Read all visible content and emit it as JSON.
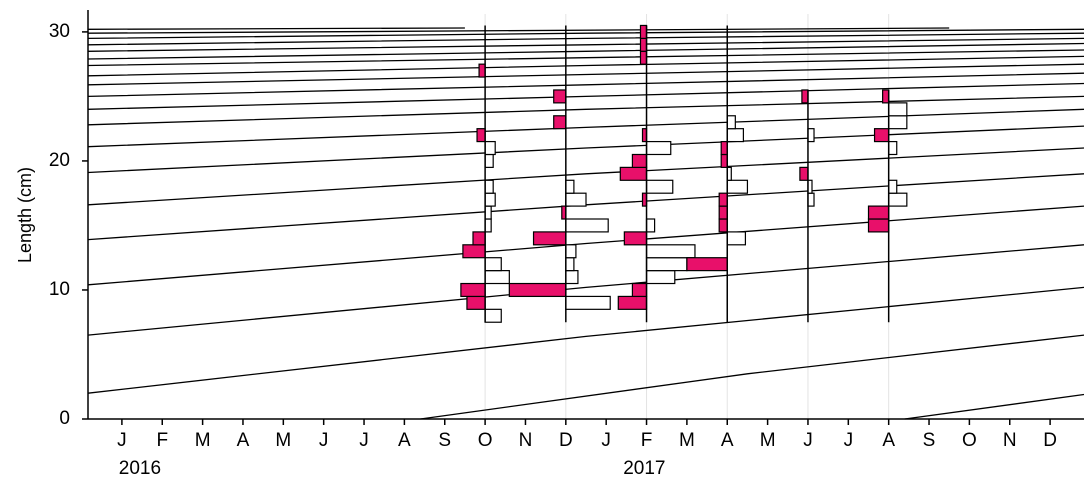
{
  "chart_data": {
    "type": "length-frequency",
    "y_label": "Length (cm)",
    "ylim": [
      0,
      31
    ],
    "yticks": [
      0,
      10,
      20,
      30
    ],
    "xlim": [
      -0.84,
      23.84
    ],
    "xticks": [
      {
        "value": 0,
        "label": "J"
      },
      {
        "value": 1,
        "label": "F"
      },
      {
        "value": 2,
        "label": "M"
      },
      {
        "value": 3,
        "label": "A"
      },
      {
        "value": 4,
        "label": "M"
      },
      {
        "value": 5,
        "label": "J"
      },
      {
        "value": 6,
        "label": "J"
      },
      {
        "value": 7,
        "label": "A"
      },
      {
        "value": 8,
        "label": "S"
      },
      {
        "value": 9,
        "label": "O"
      },
      {
        "value": 10,
        "label": "N"
      },
      {
        "value": 11,
        "label": "D"
      },
      {
        "value": 12,
        "label": "J"
      },
      {
        "value": 13,
        "label": "F"
      },
      {
        "value": 14,
        "label": "M"
      },
      {
        "value": 15,
        "label": "A"
      },
      {
        "value": 16,
        "label": "M"
      },
      {
        "value": 17,
        "label": "J"
      },
      {
        "value": 18,
        "label": "J"
      },
      {
        "value": 19,
        "label": "A"
      },
      {
        "value": 20,
        "label": "S"
      },
      {
        "value": 21,
        "label": "O"
      },
      {
        "value": 22,
        "label": "N"
      },
      {
        "value": 23,
        "label": "D"
      }
    ],
    "year_labels": [
      {
        "value": 0,
        "label": "2016"
      },
      {
        "value": 12.5,
        "label": "2017"
      }
    ],
    "negative_color": "#e8106a",
    "positive_color": "#ffffff",
    "curve_color": "#000000",
    "samples": [
      {
        "x": 9,
        "range": [
          7.5,
          30.5
        ],
        "lengths": [
          8,
          9,
          10,
          11,
          12,
          13,
          14,
          15,
          16,
          17,
          18,
          20,
          21,
          22,
          27
        ],
        "scores": [
          0.4,
          -0.45,
          -0.6,
          0.6,
          0.4,
          -0.55,
          -0.3,
          0.15,
          0.15,
          0.25,
          0.2,
          0.2,
          0.25,
          -0.2,
          -0.15
        ]
      },
      {
        "x": 11,
        "range": [
          7.5,
          30.5
        ],
        "lengths": [
          9,
          10,
          11,
          12,
          13,
          14,
          15,
          16,
          17,
          18,
          23,
          25
        ],
        "scores": [
          1.1,
          -1.4,
          0.3,
          0.2,
          0.25,
          -0.8,
          1.05,
          -0.1,
          0.5,
          0.2,
          -0.3,
          -0.3
        ]
      },
      {
        "x": 13,
        "range": [
          7.5,
          30.5
        ],
        "lengths": [
          9,
          10,
          11,
          12,
          13,
          14,
          15,
          17,
          18,
          19,
          20,
          21,
          22,
          28,
          29,
          30
        ],
        "scores": [
          -0.7,
          -0.35,
          0.7,
          1.0,
          1.2,
          -0.55,
          0.2,
          -0.1,
          0.65,
          -0.65,
          -0.35,
          0.6,
          -0.1,
          -0.15,
          -0.15,
          -0.15
        ]
      },
      {
        "x": 15,
        "range": [
          7.5,
          30.5
        ],
        "lengths": [
          12,
          14,
          15,
          16,
          17,
          18,
          19,
          20,
          21,
          22,
          23
        ],
        "scores": [
          -1.0,
          0.45,
          -0.2,
          -0.2,
          -0.2,
          0.5,
          0.1,
          -0.15,
          -0.15,
          0.4,
          0.2
        ]
      },
      {
        "x": 17,
        "range": [
          7.5,
          25.5
        ],
        "lengths": [
          17,
          18,
          19,
          22,
          25
        ],
        "scores": [
          0.15,
          0.1,
          -0.2,
          0.15,
          -0.15
        ]
      },
      {
        "x": 19,
        "range": [
          7.5,
          25.5
        ],
        "lengths": [
          15,
          16,
          17,
          18,
          21,
          22,
          23,
          24,
          25
        ],
        "scores": [
          -0.5,
          -0.5,
          0.45,
          0.2,
          0.2,
          -0.35,
          0.45,
          0.45,
          -0.15
        ]
      }
    ],
    "growth_curves": [
      {
        "x": [
          7.4,
          15.5,
          23.84
        ],
        "y": [
          0,
          3.5,
          6.5
        ]
      },
      {
        "x": [
          19.4,
          23.84
        ],
        "y": [
          0,
          1.9
        ]
      },
      {
        "x": [
          -0.84,
          11.5,
          23.84
        ],
        "y": [
          2.0,
          6.4,
          10.2
        ]
      },
      {
        "x": [
          -0.84,
          11.5,
          23.84
        ],
        "y": [
          6.5,
          10.2,
          13.5
        ]
      },
      {
        "x": [
          -0.84,
          11.5,
          23.84
        ],
        "y": [
          10.4,
          13.6,
          16.5
        ]
      },
      {
        "x": [
          -0.84,
          11.5,
          23.84
        ],
        "y": [
          13.9,
          16.6,
          19.0
        ]
      },
      {
        "x": [
          -0.84,
          11.5,
          23.84
        ],
        "y": [
          16.6,
          19.0,
          21.0
        ]
      },
      {
        "x": [
          -0.84,
          11.5,
          23.84
        ],
        "y": [
          19.1,
          21.0,
          22.7
        ]
      },
      {
        "x": [
          -0.84,
          11.5,
          23.84
        ],
        "y": [
          21.1,
          22.6,
          24.0
        ]
      },
      {
        "x": [
          -0.84,
          11.5,
          23.84
        ],
        "y": [
          22.8,
          24.0,
          25.0
        ]
      },
      {
        "x": [
          -0.84,
          11.5,
          23.84
        ],
        "y": [
          24.0,
          25.0,
          26.0
        ]
      },
      {
        "x": [
          -0.84,
          11.5,
          23.84
        ],
        "y": [
          25.0,
          25.9,
          26.8
        ]
      },
      {
        "x": [
          -0.84,
          11.5,
          23.84
        ],
        "y": [
          25.9,
          26.7,
          27.5
        ]
      },
      {
        "x": [
          -0.84,
          11.5,
          23.84
        ],
        "y": [
          26.6,
          27.4,
          28.1
        ]
      },
      {
        "x": [
          -0.84,
          11.5,
          23.84
        ],
        "y": [
          27.4,
          28.0,
          28.6
        ]
      },
      {
        "x": [
          -0.84,
          11.5,
          23.84
        ],
        "y": [
          27.9,
          28.5,
          29.1
        ]
      },
      {
        "x": [
          -0.84,
          11.5,
          23.84
        ],
        "y": [
          28.5,
          29.0,
          29.5
        ]
      },
      {
        "x": [
          -0.84,
          11.5,
          23.84
        ],
        "y": [
          29.0,
          29.5,
          29.9
        ]
      },
      {
        "x": [
          -0.84,
          11.5,
          23.84
        ],
        "y": [
          29.5,
          29.9,
          30.2
        ]
      },
      {
        "x": [
          -0.84,
          20.5
        ],
        "y": [
          29.9,
          30.3
        ]
      },
      {
        "x": [
          -0.84,
          8.5
        ],
        "y": [
          30.2,
          30.3
        ]
      }
    ]
  }
}
